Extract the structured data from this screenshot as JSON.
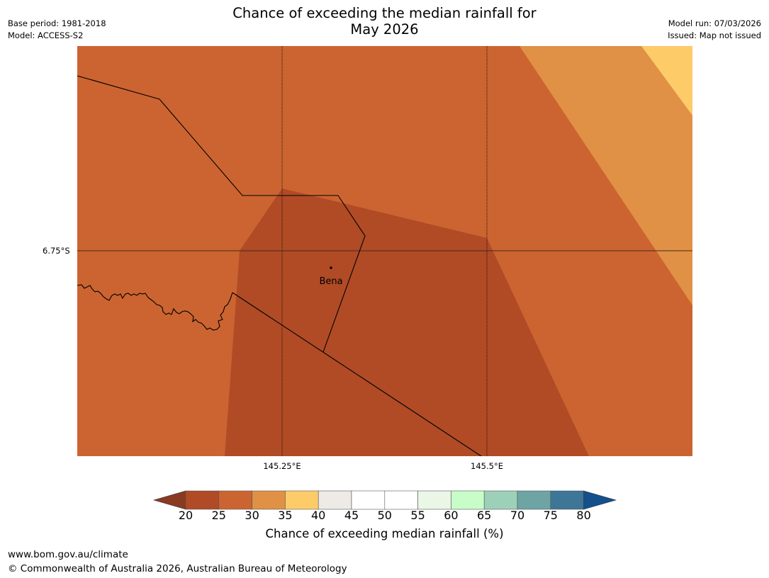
{
  "title": "Chance of exceeding the median rainfall for\nMay 2026",
  "meta_left": {
    "base_period": "Base period: 1981-2018",
    "model": "Model: ACCESS-S2"
  },
  "meta_right": {
    "model_run": "Model run: 07/03/2026",
    "issued": "Issued: Map not issued"
  },
  "map": {
    "lat_label": "6.75°S",
    "lon_labels": [
      "145.25°E",
      "145.5°E"
    ],
    "place": "Bena",
    "colors": {
      "c20_25": "#b04b26",
      "c25_30": "#cc6431",
      "c30_35": "#e09146",
      "c35_40": "#fecb69"
    }
  },
  "colorbar": {
    "title": "Chance of exceeding median rainfall (%)",
    "ticks": [
      "20",
      "25",
      "30",
      "35",
      "40",
      "45",
      "50",
      "55",
      "60",
      "65",
      "70",
      "75",
      "80"
    ],
    "colors": [
      "#b04b26",
      "#cc6431",
      "#e09146",
      "#fecb69",
      "#eeeae6",
      "#ffffff",
      "#ffffff",
      "#eaf6e6",
      "#c8fcc8",
      "#9dd0b9",
      "#6ea4a4",
      "#3e7697"
    ],
    "under_color": "#8a3a21",
    "over_color": "#14508c"
  },
  "footer": {
    "url": "www.bom.gov.au/climate",
    "copyright": "© Commonwealth of Australia 2026, Australian Bureau of Meteorology"
  }
}
